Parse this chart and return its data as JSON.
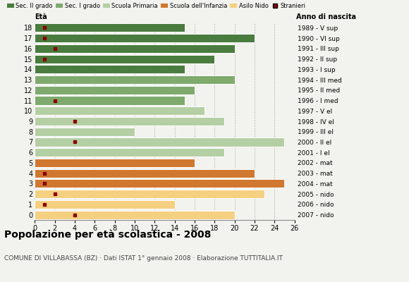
{
  "ages": [
    18,
    17,
    16,
    15,
    14,
    13,
    12,
    11,
    10,
    9,
    8,
    7,
    6,
    5,
    4,
    3,
    2,
    1,
    0
  ],
  "bar_values": [
    15,
    22,
    20,
    18,
    15,
    20,
    16,
    15,
    17,
    19,
    10,
    25,
    19,
    16,
    22,
    25,
    23,
    14,
    20
  ],
  "bar_colors": [
    "#4a7c3f",
    "#4a7c3f",
    "#4a7c3f",
    "#4a7c3f",
    "#4a7c3f",
    "#7faa6e",
    "#7faa6e",
    "#7faa6e",
    "#b5cfa4",
    "#b5cfa4",
    "#b5cfa4",
    "#b5cfa4",
    "#b5cfa4",
    "#d07830",
    "#d07830",
    "#d07830",
    "#f5d080",
    "#f5d080",
    "#f5d080"
  ],
  "stranieri_values": [
    1,
    1,
    2,
    1,
    0,
    0,
    0,
    2,
    0,
    4,
    0,
    4,
    0,
    0,
    1,
    1,
    2,
    1,
    4
  ],
  "right_labels": [
    "1989 - V sup",
    "1990 - VI sup",
    "1991 - III sup",
    "1992 - II sup",
    "1993 - I sup",
    "1994 - III med",
    "1995 - II med",
    "1996 - I med",
    "1997 - V el",
    "1998 - IV el",
    "1999 - III el",
    "2000 - II el",
    "2001 - I el",
    "2002 - mat",
    "2003 - mat",
    "2004 - mat",
    "2005 - nido",
    "2006 - nido",
    "2007 - nido"
  ],
  "legend_labels": [
    "Sec. II grado",
    "Sec. I grado",
    "Scuola Primaria",
    "Scuola dell'Infanzia",
    "Asilo Nido",
    "Stranieri"
  ],
  "legend_colors": [
    "#4a7c3f",
    "#7faa6e",
    "#b5cfa4",
    "#d07830",
    "#f5d080",
    "#8b0000"
  ],
  "title": "Popolazione per età scolastica - 2008",
  "subtitle": "COMUNE DI VILLABASSA (BZ) · Dati ISTAT 1° gennaio 2008 · Elaborazione TUTTITALIA.IT",
  "eta_label": "Età",
  "anno_label": "Anno di nascita",
  "xlim": [
    0,
    26
  ],
  "xticks": [
    0,
    2,
    4,
    6,
    8,
    10,
    12,
    14,
    16,
    18,
    20,
    22,
    24,
    26
  ],
  "bg_color": "#f2f2ee",
  "stranieri_color": "#8b0000",
  "bar_height": 0.82
}
